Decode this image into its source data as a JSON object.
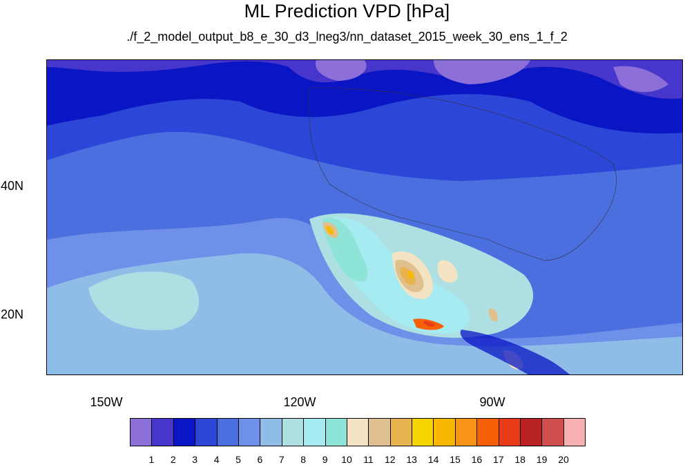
{
  "title": "ML Prediction VPD [hPa]",
  "subtitle": "./f_2_model_output_b8_e_30_d3_lneg3/nn_dataset_2015_week_30_ens_1_f_2",
  "map": {
    "lat_labels": [
      "40N",
      "20N"
    ],
    "lon_labels": [
      "150W",
      "120W",
      "90W"
    ]
  },
  "colorbar": {
    "colors": [
      "#8c6fd8",
      "#4636cc",
      "#0a16c4",
      "#2c46d8",
      "#4c6fe0",
      "#6e90e8",
      "#90bde8",
      "#aedfe2",
      "#a6eaf2",
      "#8ee4d6",
      "#f4e3c2",
      "#e0c08e",
      "#e8b450",
      "#f5d400",
      "#f8b800",
      "#f89418",
      "#f86008",
      "#e83c18",
      "#b82222",
      "#d05050",
      "#f8b0b0"
    ],
    "ticks": [
      "1",
      "2",
      "3",
      "4",
      "5",
      "6",
      "7",
      "8",
      "9",
      "10",
      "11",
      "12",
      "13",
      "14",
      "15",
      "16",
      "17",
      "18",
      "19",
      "20"
    ]
  }
}
